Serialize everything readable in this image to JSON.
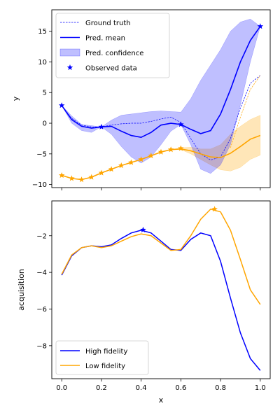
{
  "chart_data": [
    {
      "type": "line",
      "xlabel": "",
      "ylabel": "y",
      "xlim": [
        -0.05,
        1.05
      ],
      "ylim": [
        -10.5,
        18.5
      ],
      "yticks": [
        -10,
        -5,
        0,
        5,
        10,
        15
      ],
      "xticks": [
        0.0,
        0.2,
        0.4,
        0.6,
        0.8,
        1.0
      ],
      "legend_position": "top-left",
      "legend": {
        "ground_truth": "Ground truth",
        "pred_mean": "Pred. mean",
        "pred_conf": "Pred. confidence",
        "observed": "Observed data"
      },
      "colors": {
        "high": "#0000ff",
        "low": "#ffa500"
      },
      "high_fidelity": {
        "x": [
          0.0,
          0.05,
          0.1,
          0.15,
          0.2,
          0.25,
          0.3,
          0.35,
          0.4,
          0.45,
          0.5,
          0.55,
          0.6,
          0.65,
          0.7,
          0.75,
          0.8,
          0.85,
          0.9,
          0.95,
          1.0
        ],
        "mean": [
          2.9,
          0.6,
          -0.5,
          -0.8,
          -0.6,
          -0.5,
          -1.3,
          -2.0,
          -2.3,
          -1.5,
          -0.3,
          0.0,
          -0.2,
          -1.0,
          -1.7,
          -1.2,
          1.5,
          5.5,
          10.0,
          13.5,
          15.8
        ],
        "upper": [
          2.9,
          1.2,
          -0.2,
          -0.4,
          -0.6,
          0.5,
          1.3,
          1.5,
          1.7,
          1.9,
          2.0,
          1.9,
          1.8,
          4.0,
          7.0,
          9.5,
          12.0,
          15.0,
          16.5,
          17.0,
          15.8
        ],
        "lower": [
          2.9,
          0.0,
          -1.2,
          -1.5,
          -0.6,
          -1.8,
          -3.8,
          -5.5,
          -6.5,
          -5.5,
          -3.5,
          -1.3,
          -0.2,
          -3.5,
          -7.5,
          -8.2,
          -6.8,
          -3.5,
          3.0,
          10.0,
          15.8
        ],
        "truth": [
          2.9,
          0.8,
          -0.3,
          -0.6,
          -0.6,
          -0.3,
          -0.1,
          0.0,
          0.0,
          0.3,
          0.7,
          1.0,
          0.1,
          -2.5,
          -5.0,
          -6.0,
          -5.5,
          -2.5,
          2.5,
          6.5,
          7.8
        ],
        "observed_x": [
          0.0,
          0.2,
          0.6,
          1.0
        ],
        "observed_y": [
          2.9,
          -0.6,
          -0.2,
          15.8
        ]
      },
      "low_fidelity": {
        "x": [
          0.0,
          0.05,
          0.1,
          0.15,
          0.2,
          0.25,
          0.3,
          0.35,
          0.4,
          0.45,
          0.5,
          0.55,
          0.6,
          0.65,
          0.7,
          0.75,
          0.8,
          0.85,
          0.9,
          0.95,
          1.0
        ],
        "mean": [
          -8.5,
          -9.0,
          -9.2,
          -8.8,
          -8.1,
          -7.5,
          -6.9,
          -6.4,
          -5.9,
          -5.3,
          -4.7,
          -4.3,
          -4.2,
          -4.5,
          -5.0,
          -5.5,
          -5.6,
          -4.9,
          -3.8,
          -2.6,
          -2.0
        ],
        "upper": [
          -8.5,
          -9.0,
          -9.2,
          -8.8,
          -8.1,
          -7.5,
          -6.9,
          -6.4,
          -5.9,
          -5.3,
          -4.7,
          -4.3,
          -4.0,
          -3.9,
          -4.2,
          -4.2,
          -3.5,
          -1.8,
          -0.5,
          0.6,
          1.3
        ],
        "lower": [
          -8.5,
          -9.0,
          -9.2,
          -8.8,
          -8.1,
          -7.5,
          -6.9,
          -6.4,
          -5.9,
          -5.3,
          -4.7,
          -4.3,
          -4.3,
          -5.0,
          -5.9,
          -6.8,
          -7.6,
          -7.8,
          -7.2,
          -5.9,
          -5.2
        ],
        "truth_x": [
          0.85,
          0.9,
          0.95,
          1.0
        ],
        "truth": [
          -4.0,
          1.0,
          5.5,
          7.8
        ],
        "observed_x": [
          0.0,
          0.05,
          0.1,
          0.15,
          0.2,
          0.25,
          0.3,
          0.35,
          0.4,
          0.45,
          0.5,
          0.55,
          0.6
        ],
        "observed_y": [
          -8.5,
          -9.0,
          -9.2,
          -8.8,
          -8.1,
          -7.5,
          -6.9,
          -6.4,
          -5.9,
          -5.3,
          -4.7,
          -4.3,
          -4.1
        ]
      }
    },
    {
      "type": "line",
      "xlabel": "x",
      "ylabel": "acquisition",
      "xlim": [
        -0.05,
        1.05
      ],
      "ylim": [
        -9.8,
        -0.1
      ],
      "yticks": [
        -8,
        -6,
        -4,
        -2
      ],
      "xticks": [
        0.0,
        0.2,
        0.4,
        0.6,
        0.8,
        1.0
      ],
      "xtick_labels": [
        "0.0",
        "0.2",
        "0.4",
        "0.6",
        "0.8",
        "1.0"
      ],
      "legend_position": "bottom-left",
      "colors": {
        "high": "#0000ff",
        "low": "#ffa500"
      },
      "series": [
        {
          "name": "High fidelity",
          "key": "high",
          "x": [
            0.0,
            0.05,
            0.1,
            0.15,
            0.2,
            0.25,
            0.3,
            0.35,
            0.4,
            0.45,
            0.5,
            0.55,
            0.6,
            0.65,
            0.7,
            0.75,
            0.8,
            0.85,
            0.9,
            0.95,
            1.0
          ],
          "y": [
            -4.15,
            -3.1,
            -2.65,
            -2.55,
            -2.6,
            -2.5,
            -2.15,
            -1.85,
            -1.7,
            -1.85,
            -2.3,
            -2.75,
            -2.8,
            -2.2,
            -1.85,
            -2.0,
            -3.4,
            -5.4,
            -7.3,
            -8.7,
            -9.35
          ],
          "max_x": 0.41,
          "max_y": -1.68
        },
        {
          "name": "Low fidelity",
          "key": "low",
          "x": [
            0.0,
            0.05,
            0.1,
            0.15,
            0.2,
            0.25,
            0.3,
            0.35,
            0.4,
            0.45,
            0.5,
            0.55,
            0.6,
            0.65,
            0.7,
            0.75,
            0.8,
            0.85,
            0.9,
            0.95,
            1.0
          ],
          "y": [
            -4.1,
            -3.05,
            -2.65,
            -2.55,
            -2.65,
            -2.55,
            -2.3,
            -2.05,
            -1.9,
            -2.0,
            -2.4,
            -2.8,
            -2.75,
            -2.0,
            -1.1,
            -0.55,
            -0.7,
            -1.7,
            -3.3,
            -4.95,
            -5.75
          ],
          "max_x": 0.77,
          "max_y": -0.55
        }
      ]
    }
  ]
}
